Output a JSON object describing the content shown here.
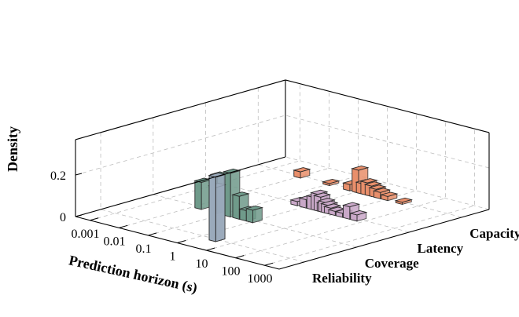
{
  "chart_data": {
    "type": "bar3d",
    "zlabel": "Density",
    "xlabel": "Prediction horizon (s)",
    "ylabel": "",
    "x_scale": "log",
    "x_ticks": [
      "0.001",
      "0.01",
      "0.1",
      "1",
      "10",
      "100",
      "1000"
    ],
    "z_ticks": [
      "0",
      "0.2"
    ],
    "zlim": [
      0,
      0.37
    ],
    "categories": [
      "Reliability",
      "Coverage",
      "Latency",
      "Capacity"
    ],
    "grid": true,
    "colors": {
      "Reliability": "#9aaabb",
      "Coverage": "#6f9a8a",
      "Latency": "#c9a8c8",
      "Capacity": "#e98f6b"
    },
    "series": [
      {
        "category": "Reliability",
        "x": [
          3.16,
          3.16
        ],
        "values": [
          0.26,
          0.31
        ]
      },
      {
        "category": "Coverage",
        "x": [
          0.016,
          0.056,
          0.16,
          0.32,
          0.56,
          0.94
        ],
        "values": [
          0.13,
          0.18,
          0.21,
          0.11,
          0.05,
          0.06
        ]
      },
      {
        "category": "Latency",
        "x": [
          0.5,
          1,
          1.78,
          2.5,
          3.16,
          4.0,
          4.5,
          5.6,
          7.1,
          10,
          17.8,
          31.6,
          56
        ],
        "values": [
          0.02,
          0.04,
          0.06,
          0.08,
          0.07,
          0.04,
          0.05,
          0.04,
          0.03,
          0.02,
          0.02,
          0.06,
          0.03
        ]
      },
      {
        "category": "Capacity",
        "x": [
          0.01,
          0.1,
          0.5,
          1,
          1.4,
          2,
          2.8,
          4,
          5.6,
          10,
          31.6
        ],
        "values": [
          0.03,
          0.01,
          0.03,
          0.11,
          0.05,
          0.06,
          0.05,
          0.04,
          0.03,
          0.02,
          0.01
        ]
      }
    ]
  }
}
